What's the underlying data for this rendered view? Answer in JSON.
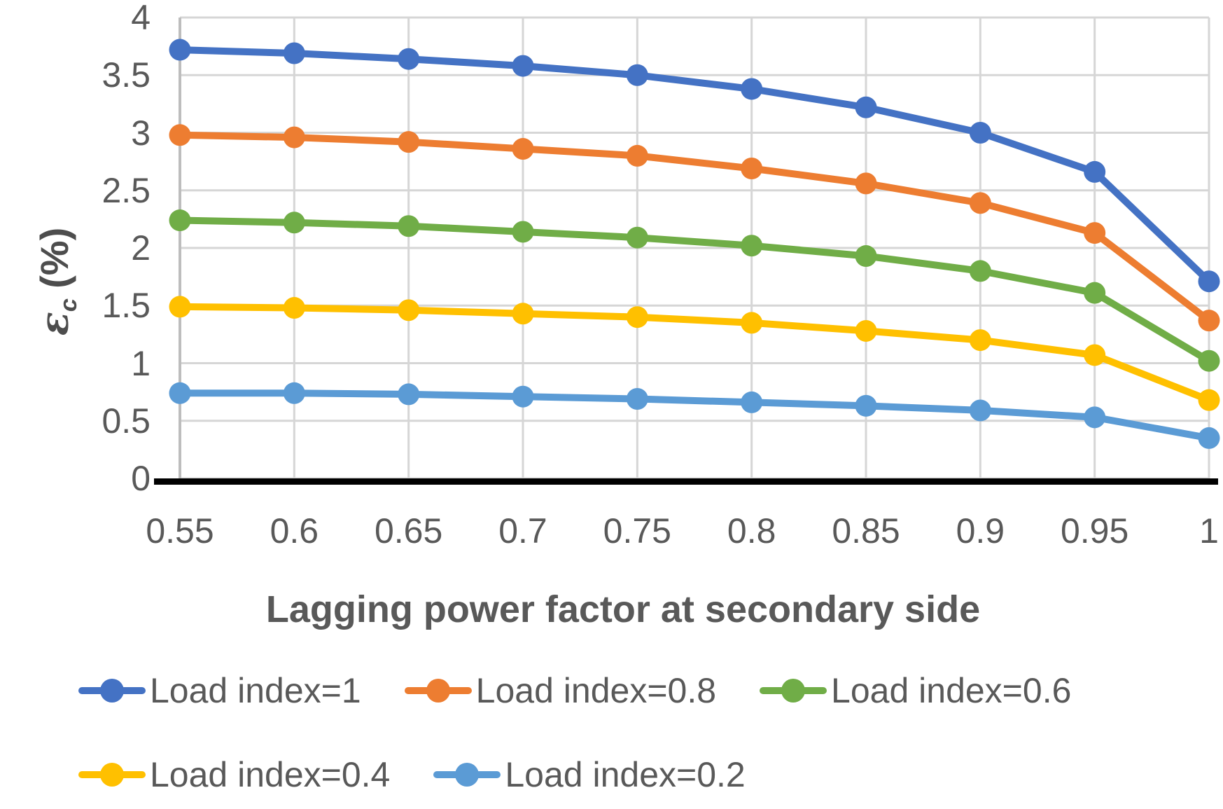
{
  "chart_data": {
    "type": "line",
    "title": "",
    "xlabel": "Lagging power factor at secondary side",
    "ylabel": "εc (%)",
    "ylabel_symbol": "ε",
    "ylabel_sub": "c",
    "ylabel_unit": "(%)",
    "x": [
      0.55,
      0.6,
      0.65,
      0.7,
      0.75,
      0.8,
      0.85,
      0.9,
      0.95,
      1
    ],
    "xtick_labels": [
      "0.55",
      "0.6",
      "0.65",
      "0.7",
      "0.75",
      "0.8",
      "0.85",
      "0.9",
      "0.95",
      "1"
    ],
    "ytick_labels": [
      "0",
      "0.5",
      "1",
      "1.5",
      "2",
      "2.5",
      "3",
      "3.5",
      "4"
    ],
    "xlim": [
      0.55,
      1.0
    ],
    "ylim": [
      0,
      4
    ],
    "grid": true,
    "legend_position": "bottom-left",
    "series": [
      {
        "name": "Load index=1",
        "color": "#4472C4",
        "values": [
          3.72,
          3.69,
          3.64,
          3.58,
          3.5,
          3.38,
          3.22,
          3.0,
          2.66,
          1.71
        ]
      },
      {
        "name": "Load index=0.8",
        "color": "#ED7D31",
        "values": [
          2.98,
          2.96,
          2.92,
          2.86,
          2.8,
          2.69,
          2.56,
          2.39,
          2.13,
          1.37
        ]
      },
      {
        "name": "Load index=0.6",
        "color": "#70AD47",
        "values": [
          2.24,
          2.22,
          2.19,
          2.14,
          2.09,
          2.02,
          1.93,
          1.8,
          1.61,
          1.02
        ]
      },
      {
        "name": "Load index=0.4",
        "color": "#FFC000",
        "values": [
          1.49,
          1.48,
          1.46,
          1.43,
          1.4,
          1.35,
          1.28,
          1.2,
          1.07,
          0.68
        ]
      },
      {
        "name": "Load index=0.2",
        "color": "#5B9BD5",
        "values": [
          0.74,
          0.74,
          0.73,
          0.71,
          0.69,
          0.66,
          0.63,
          0.59,
          0.53,
          0.35
        ]
      }
    ],
    "legend_rows": [
      [
        0,
        1,
        2
      ],
      [
        3,
        4
      ]
    ],
    "colors": {
      "gridline": "#D6D6D6",
      "plot_left_edge": "#BDBDBD",
      "axis_line": "#000000",
      "tick_text": "#595959",
      "title_text": "#595959"
    }
  }
}
